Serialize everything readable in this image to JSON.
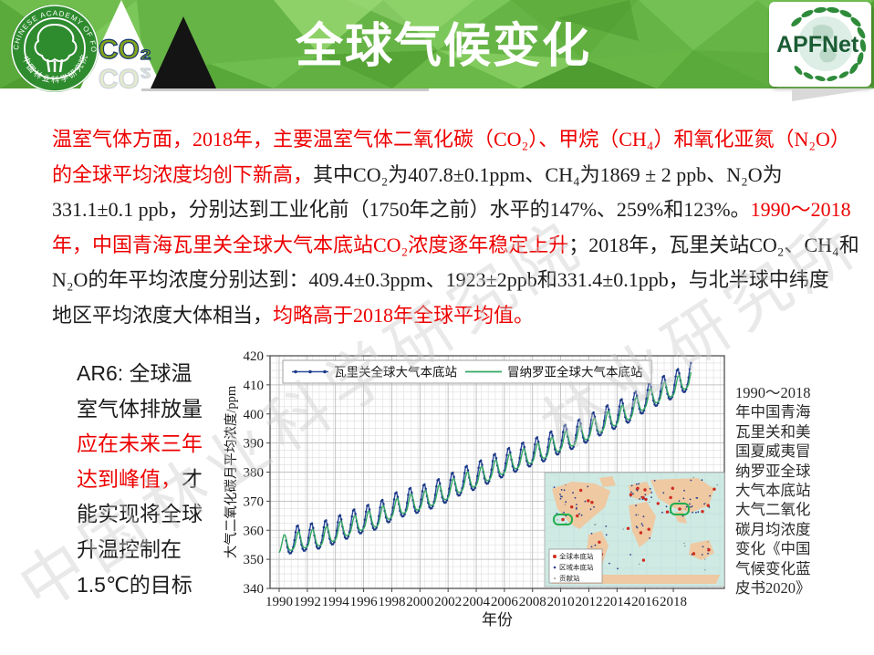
{
  "header": {
    "title": "全球气候变化",
    "title_color": "#ffffff",
    "banner_color": "#66b446",
    "co2_label": "CO₂",
    "caf_logo": {
      "top_text": "CHINESE ACADEMY OF FORESTRY",
      "bottom_text": "中国林业科学研究院"
    },
    "apfnet_label": "APFNet"
  },
  "colors": {
    "emphasis_red": "#ee0000",
    "body_black": "#1c1c1c"
  },
  "watermarks": [
    "中国林业科学研究院",
    "林业研究所"
  ],
  "paragraph": {
    "lines": [
      [
        {
          "t": "温室气体方面，2018年，主要温室气体二氧化碳（CO₂）、甲烷（CH₄）和氧化亚氮（N₂O）",
          "c": "r"
        }
      ],
      [
        {
          "t": "的全球平均浓度均创下新高，",
          "c": "r"
        },
        {
          "t": "其中CO₂为407.8±0.1ppm、CH₄为1869 ± 2 ppb、N₂O为",
          "c": "k"
        }
      ],
      [
        {
          "t": "331.1±0.1 ppb，分别达到工业化前（1750年之前）水平的147%、259%和123%。",
          "c": "k"
        },
        {
          "t": "1990～2018",
          "c": "r"
        }
      ],
      [
        {
          "t": "年，中国青海瓦里关全球大气本底站CO₂浓度逐年稳定上升",
          "c": "r"
        },
        {
          "t": "；2018年，瓦里关站CO₂、CH₄和",
          "c": "k"
        }
      ],
      [
        {
          "t": "N₂O的年平均浓度分别达到：409.4±0.3ppm、1923±2ppb和331.4±0.1ppb，与北半球中纬度",
          "c": "k"
        }
      ],
      [
        {
          "t": "地区平均浓度大体相当，",
          "c": "k"
        },
        {
          "t": "均略高于2018年全球平均值。",
          "c": "r"
        }
      ]
    ]
  },
  "sidebar_left": {
    "lines": [
      [
        {
          "t": "AR6: 全球温",
          "c": "k"
        }
      ],
      [
        {
          "t": "室气体排放量",
          "c": "k"
        }
      ],
      [
        {
          "t": "应在未来三年",
          "c": "r"
        }
      ],
      [
        {
          "t": "达到峰值，",
          "c": "r"
        },
        {
          "t": "才",
          "c": "k"
        }
      ],
      [
        {
          "t": "能实现将全球",
          "c": "k"
        }
      ],
      [
        {
          "t": "升温控制在",
          "c": "k"
        }
      ],
      [
        {
          "t": "1.5℃的目标",
          "c": "k"
        }
      ]
    ]
  },
  "caption_right": {
    "lines": [
      "1990～2018",
      "年中国青海",
      "瓦里关和美",
      "国夏威夷冒",
      "纳罗亚全球",
      "大气本底站",
      "大气二氧化",
      "碳月均浓度",
      "变化《中国",
      "气候变化蓝",
      "皮书2020》"
    ]
  },
  "chart_data": {
    "type": "line",
    "title": "",
    "xlabel": "年份",
    "ylabel": "大气二氧化碳月平均浓度/ppm",
    "xlim": [
      1989.4,
      2021.6
    ],
    "ylim": [
      340,
      420
    ],
    "xticks": [
      1990,
      1992,
      1994,
      1996,
      1998,
      2000,
      2002,
      2004,
      2006,
      2008,
      2010,
      2012,
      2014,
      2016,
      2018
    ],
    "yticks": [
      340,
      350,
      360,
      370,
      380,
      390,
      400,
      410,
      420
    ],
    "grid": "fine-mesh",
    "legend_position": "top-inside",
    "series": [
      {
        "name": "瓦里关全球大气本底站",
        "color": "#2b4a9d",
        "marker_color": "#1d3a85",
        "markers": true,
        "first_year": 1990,
        "start": 1990.5,
        "end": 2019.3,
        "seasonal_amplitude_ppm": 4.6,
        "seasonal_peak_frac": 0.3,
        "annual_means_ppm": [
          355.0,
          356.2,
          357.0,
          357.7,
          359.4,
          361.4,
          363.2,
          364.3,
          367.3,
          369.0,
          370.1,
          371.7,
          373.8,
          376.4,
          378.1,
          380.4,
          382.5,
          384.4,
          386.2,
          388.0,
          390.5,
          392.2,
          394.5,
          397.1,
          399.2,
          401.4,
          404.8,
          407.2,
          409.4,
          412.0
        ]
      },
      {
        "name": "冒纳罗亚全球大气本底站",
        "color": "#33a862",
        "marker_color": "#33a862",
        "markers": false,
        "first_year": 1990,
        "start": 1990.0,
        "end": 2019.3,
        "seasonal_amplitude_ppm": 3.0,
        "seasonal_peak_frac": 0.37,
        "annual_means_ppm": [
          354.4,
          355.6,
          356.4,
          357.1,
          358.8,
          360.8,
          362.6,
          363.7,
          366.7,
          368.4,
          369.5,
          371.1,
          373.2,
          375.8,
          377.5,
          379.8,
          381.9,
          383.8,
          385.6,
          387.4,
          389.9,
          391.6,
          393.9,
          396.5,
          398.6,
          400.8,
          404.2,
          406.6,
          408.5,
          411.4
        ]
      }
    ],
    "inset_map": {
      "legend": [
        {
          "label": "全球本底站",
          "color": "#cf2b20"
        },
        {
          "label": "区域本底站",
          "color": "#2c3f8e"
        },
        {
          "label": "贡献站",
          "color": "#555555"
        }
      ],
      "ocean_color": "#cfe9e3",
      "land_color": "#eec9a2",
      "highlight_color": "#1fae4e"
    }
  }
}
